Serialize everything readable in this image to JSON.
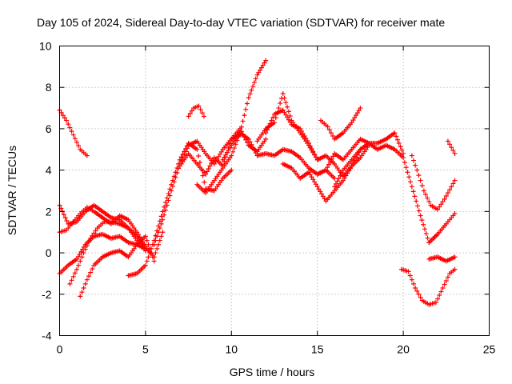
{
  "chart_data": {
    "type": "scatter",
    "title": "Day 105 of 2024, Sidereal Day-to-day VTEC variation (SDTVAR) for receiver mate",
    "xlabel": "GPS time / hours",
    "ylabel": "SDTVAR / TECUs",
    "xlim": [
      0,
      25
    ],
    "ylim": [
      -4,
      10
    ],
    "x_ticks": [
      "0",
      "5",
      "10",
      "15",
      "20",
      "25"
    ],
    "y_ticks": [
      "-4",
      "-2",
      "0",
      "2",
      "4",
      "6",
      "8",
      "10"
    ],
    "x_tick_values": [
      0,
      5,
      10,
      15,
      20,
      25
    ],
    "y_tick_values": [
      -4,
      -2,
      0,
      2,
      4,
      6,
      8,
      10
    ],
    "grid": true,
    "marker": "plus",
    "marker_color": "#ff0000",
    "series": [
      {
        "x": [
          0.0,
          0.4,
          0.8,
          1.2,
          1.6
        ],
        "y": [
          6.9,
          6.4,
          5.7,
          5.0,
          4.7
        ]
      },
      {
        "x": [
          0.0,
          0.5,
          1.0,
          1.5,
          2.0,
          2.5,
          3.0,
          3.5,
          4.0,
          4.5,
          5.0
        ],
        "y": [
          2.3,
          1.4,
          1.5,
          2.0,
          2.3,
          2.0,
          1.7,
          1.6,
          1.2,
          0.8,
          0.3
        ]
      },
      {
        "x": [
          0.0,
          0.4,
          0.8,
          1.2,
          1.6,
          2.0,
          2.5,
          3.0,
          3.5,
          4.0,
          4.5,
          5.0,
          5.5,
          6.0
        ],
        "y": [
          1.0,
          1.1,
          1.5,
          1.9,
          2.2,
          2.0,
          1.7,
          1.4,
          1.8,
          1.6,
          1.0,
          0.3,
          -0.2,
          1.0
        ]
      },
      {
        "x": [
          0.0,
          0.5,
          1.0,
          1.5,
          2.0,
          2.5,
          3.0,
          3.5,
          4.0,
          4.5,
          5.0
        ],
        "y": [
          -1.0,
          -0.6,
          -0.3,
          0.4,
          0.8,
          0.9,
          0.7,
          0.8,
          0.5,
          0.4,
          0.2
        ]
      },
      {
        "x": [
          0.6,
          1.0,
          1.4,
          1.8,
          2.2,
          2.6,
          3.0,
          3.5,
          4.0,
          4.5,
          5.0
        ],
        "y": [
          -1.5,
          -0.8,
          0.0,
          0.7,
          1.2,
          1.5,
          1.5,
          1.4,
          1.2,
          0.6,
          0.1
        ]
      },
      {
        "x": [
          1.2,
          1.6,
          2.0,
          2.5,
          3.0,
          3.5,
          4.0,
          4.5,
          5.0,
          5.5
        ],
        "y": [
          -2.1,
          -1.3,
          -0.6,
          -0.2,
          0.0,
          0.1,
          -0.2,
          0.4,
          0.8,
          -0.4
        ]
      },
      {
        "x": [
          4.0,
          4.5,
          5.0,
          5.5,
          6.0,
          6.5,
          7.0,
          7.5,
          8.0,
          8.5,
          9.0,
          9.5,
          10.0
        ],
        "y": [
          -1.1,
          -1.0,
          -0.6,
          0.6,
          2.0,
          3.3,
          4.5,
          5.3,
          5.0,
          3.1,
          3.0,
          3.6,
          4.0
        ]
      },
      {
        "x": [
          5.5,
          6.0,
          6.5,
          7.0,
          7.5,
          8.0,
          8.5,
          9.0,
          9.5,
          10.0,
          10.5
        ],
        "y": [
          0.4,
          1.6,
          3.0,
          4.3,
          5.2,
          5.4,
          4.8,
          4.3,
          5.0,
          5.5,
          5.7
        ]
      },
      {
        "x": [
          7.5,
          7.8,
          8.1,
          8.4
        ],
        "y": [
          6.6,
          7.0,
          7.1,
          6.6
        ]
      },
      {
        "x": [
          7.0,
          7.5,
          8.0,
          8.5,
          9.0,
          9.5,
          10.0,
          10.5,
          11.0,
          11.5,
          12.0
        ],
        "y": [
          4.2,
          4.8,
          4.3,
          3.8,
          4.6,
          4.2,
          5.5,
          6.0,
          5.2,
          4.9,
          5.5
        ]
      },
      {
        "x": [
          8.0,
          8.5,
          9.0,
          9.5,
          10.0,
          10.5,
          11.0,
          11.5,
          12.0
        ],
        "y": [
          3.3,
          2.9,
          3.5,
          4.1,
          4.7,
          5.8,
          7.5,
          8.6,
          9.3
        ]
      },
      {
        "x": [
          9.5,
          10.0,
          10.5,
          11.0,
          11.5,
          12.0,
          12.5,
          13.0,
          13.5,
          14.0,
          14.5,
          15.0,
          15.5,
          16.0
        ],
        "y": [
          4.5,
          5.2,
          5.8,
          5.5,
          4.7,
          4.8,
          4.7,
          5.0,
          4.9,
          4.6,
          4.1,
          3.8,
          4.0,
          3.6
        ]
      },
      {
        "x": [
          11.5,
          12.0,
          12.5,
          13.0,
          13.5,
          14.0,
          14.5,
          15.0
        ],
        "y": [
          5.4,
          6.0,
          6.3,
          7.7,
          6.4,
          5.8,
          5.2,
          4.5
        ]
      },
      {
        "x": [
          12.0,
          12.5,
          13.0,
          13.5,
          14.0,
          14.5,
          15.0,
          15.5,
          16.0,
          16.5,
          17.0,
          17.5,
          18.0
        ],
        "y": [
          5.8,
          6.7,
          6.9,
          6.2,
          6.0,
          5.3,
          4.5,
          4.7,
          4.3,
          3.7,
          4.2,
          4.6,
          5.2
        ]
      },
      {
        "x": [
          13.0,
          13.5,
          14.0,
          14.5,
          15.0,
          15.5,
          16.0,
          16.5,
          17.0,
          17.5
        ],
        "y": [
          4.3,
          4.1,
          3.6,
          3.9,
          3.2,
          2.5,
          3.0,
          3.5,
          4.2,
          5.0
        ]
      },
      {
        "x": [
          15.2,
          15.6,
          16.0,
          16.5,
          17.0,
          17.5
        ],
        "y": [
          6.4,
          6.1,
          5.5,
          5.8,
          6.3,
          7.0
        ]
      },
      {
        "x": [
          15.0,
          15.5,
          16.0,
          16.5,
          17.0,
          17.5,
          18.0,
          18.5,
          19.0,
          19.5,
          20.0
        ],
        "y": [
          3.8,
          4.0,
          4.8,
          4.5,
          5.0,
          5.5,
          5.3,
          5.3,
          5.5,
          5.8,
          4.8
        ]
      },
      {
        "x": [
          16.0,
          16.5,
          17.0,
          17.5,
          18.0,
          18.5,
          19.0,
          19.5,
          20.0,
          20.5,
          21.0,
          21.5,
          22.0
        ],
        "y": [
          3.2,
          4.0,
          4.5,
          5.0,
          5.3,
          5.0,
          5.2,
          5.0,
          4.6,
          3.2,
          1.8,
          0.5,
          0.9
        ]
      },
      {
        "x": [
          20.5,
          20.8,
          21.2,
          21.6,
          22.0,
          22.4,
          22.8,
          23.0
        ],
        "y": [
          4.7,
          4.0,
          3.0,
          2.3,
          2.1,
          2.6,
          3.2,
          3.5
        ]
      },
      {
        "x": [
          21.5,
          22.0,
          22.5,
          22.8,
          23.0
        ],
        "y": [
          0.5,
          0.9,
          1.4,
          1.7,
          1.9
        ]
      },
      {
        "x": [
          22.6,
          22.8,
          23.0
        ],
        "y": [
          5.4,
          5.1,
          4.8
        ]
      },
      {
        "x": [
          19.9,
          20.3,
          20.7,
          21.1,
          21.5,
          21.9,
          22.3,
          22.7,
          23.0
        ],
        "y": [
          -0.8,
          -0.9,
          -1.7,
          -2.3,
          -2.5,
          -2.4,
          -1.7,
          -1.0,
          -0.8
        ]
      },
      {
        "x": [
          21.5,
          22.0,
          22.5,
          23.0
        ],
        "y": [
          -0.3,
          -0.2,
          -0.4,
          -0.2
        ]
      }
    ]
  }
}
